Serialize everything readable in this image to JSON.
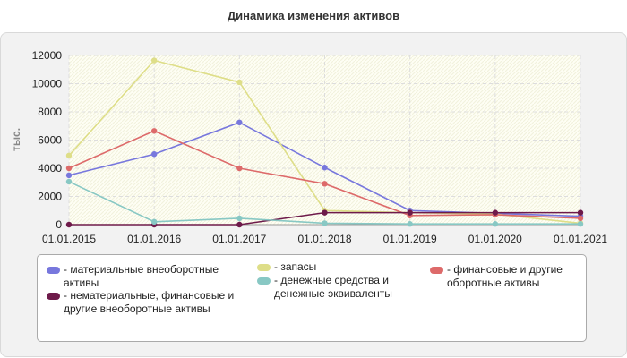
{
  "title": "Динамика изменения активов",
  "chart_data": {
    "type": "line",
    "title": "Динамика изменения активов",
    "ylabel": "тыс.",
    "xlabel": "",
    "ylim": [
      0,
      12000
    ],
    "yticks": [
      0,
      2000,
      4000,
      6000,
      8000,
      10000,
      12000
    ],
    "grid": true,
    "legend_position": "bottom",
    "categories": [
      "01.01.2015",
      "01.01.2016",
      "01.01.2017",
      "01.01.2018",
      "01.01.2019",
      "01.01.2020",
      "01.01.2021"
    ],
    "series": [
      {
        "name": "- материальные внеоборотные активы",
        "color": "#7777dd",
        "values": [
          3500,
          5000,
          7250,
          4050,
          1000,
          800,
          600
        ]
      },
      {
        "name": "- запасы",
        "color": "#dede88",
        "values": [
          4900,
          11650,
          10100,
          1000,
          850,
          750,
          100
        ]
      },
      {
        "name": "- финансовые и другие оборотные активы",
        "color": "#dd6a6a",
        "values": [
          4000,
          6650,
          4000,
          2900,
          650,
          700,
          450
        ]
      },
      {
        "name": "- нематериальные, финансовые и другие внеоборотные активы",
        "color": "#6e1a4a",
        "values": [
          0,
          0,
          0,
          850,
          850,
          850,
          850
        ]
      },
      {
        "name": "- денежные средства и денежные эквиваленты",
        "color": "#88c8c4",
        "values": [
          3050,
          200,
          450,
          100,
          50,
          50,
          50
        ]
      }
    ]
  }
}
